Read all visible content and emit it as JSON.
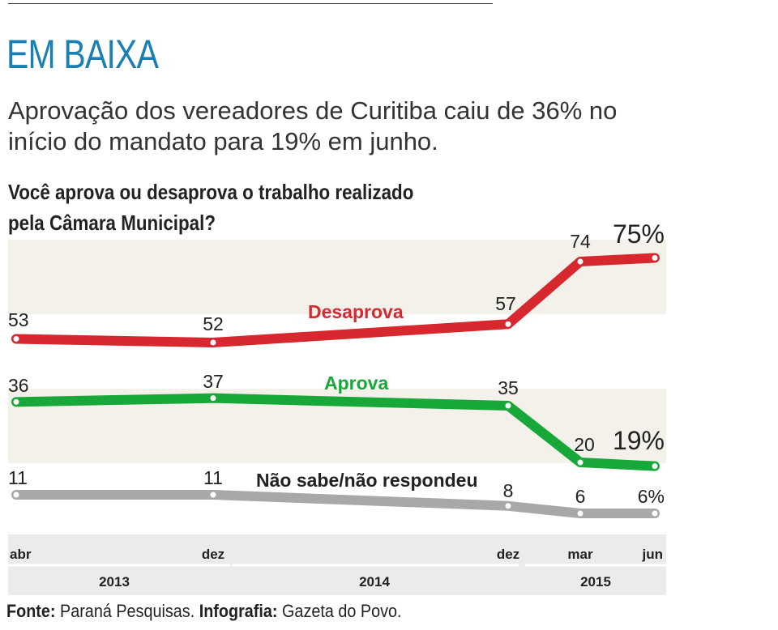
{
  "headline": "EM BAIXA",
  "subtitle": "Aprovação dos vereadores de Curitiba caiu de 36% no início do mandato para 19% em junho.",
  "question": "Você aprova ou desaprova o trabalho realizado pela Câmara Municipal?",
  "footer": {
    "source_label": "Fonte:",
    "source_text": "Paraná Pesquisas.",
    "graphics_label": "Infografia:",
    "graphics_text": "Gazeta do Povo."
  },
  "chart_data": {
    "type": "line",
    "x_ticks": [
      "abr",
      "dez",
      "dez",
      "mar",
      "jun"
    ],
    "year_labels": [
      "2013",
      "2014",
      "2015"
    ],
    "series": [
      {
        "name": "Desaprova",
        "color": "#d7282f",
        "values": [
          53,
          52,
          57,
          74,
          75
        ],
        "value_labels": [
          "53",
          "52",
          "57",
          "74",
          "75%"
        ]
      },
      {
        "name": "Aprova",
        "color": "#18a83a",
        "values": [
          36,
          37,
          35,
          20,
          19
        ],
        "value_labels": [
          "36",
          "37",
          "35",
          "20",
          "19%"
        ]
      },
      {
        "name": "Não sabe/não respondeu",
        "color": "#a7a8aa",
        "values": [
          11,
          11,
          8,
          6,
          6
        ],
        "value_labels": [
          "11",
          "11",
          "8",
          "6",
          "6%"
        ]
      }
    ],
    "band_color": "#f3f1ea",
    "axis_band_color": "#ebebeb"
  }
}
